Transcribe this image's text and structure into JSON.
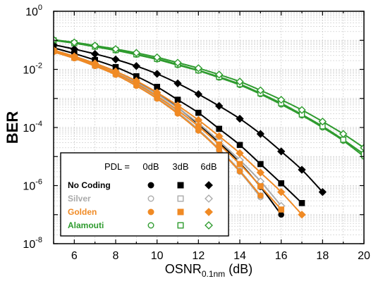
{
  "chart_data": {
    "type": "line",
    "title": "",
    "xlabel": "OSNR",
    "xlabel_sub": "0.1nm",
    "xlabel_unit": "(dB)",
    "ylabel": "BER",
    "xlim": [
      5,
      20
    ],
    "ylim": [
      1e-08,
      1
    ],
    "yscale": "log",
    "grid": true,
    "x_ticks": [
      6,
      8,
      10,
      12,
      14,
      16,
      18,
      20
    ],
    "y_ticks": [
      {
        "exp": 0,
        "label": "10",
        "sup": "0"
      },
      {
        "exp": -2,
        "label": "10",
        "sup": "-2"
      },
      {
        "exp": -4,
        "label": "10",
        "sup": "-4"
      },
      {
        "exp": -6,
        "label": "10",
        "sup": "-6"
      },
      {
        "exp": -8,
        "label": "10",
        "sup": "-8"
      }
    ],
    "legend": {
      "placement": "bottom-left",
      "pdl_label": "PDL =",
      "pdl_columns": [
        "0dB",
        "3dB",
        "6dB"
      ],
      "rows": [
        {
          "label": "No Coding",
          "color": "#000000"
        },
        {
          "label": "Silver",
          "color": "#aaaaaa"
        },
        {
          "label": "Golden",
          "color": "#f08a24"
        },
        {
          "label": "Alamouti",
          "color": "#2e9b2e"
        }
      ]
    },
    "series": [
      {
        "name": "No Coding",
        "pdl": "0dB",
        "color": "#000000",
        "marker": "circle",
        "fill": true,
        "x": [
          5,
          6,
          7,
          8,
          9,
          10,
          11,
          12,
          13,
          14,
          15,
          16
        ],
        "y": [
          0.045,
          0.028,
          0.016,
          0.0085,
          0.0038,
          0.0015,
          0.00048,
          0.00013,
          3e-05,
          6e-06,
          9e-07,
          1e-07
        ]
      },
      {
        "name": "No Coding",
        "pdl": "3dB",
        "color": "#000000",
        "marker": "square",
        "fill": true,
        "x": [
          5,
          6,
          7,
          8,
          9,
          10,
          11,
          12,
          13,
          14,
          15,
          16,
          17
        ],
        "y": [
          0.055,
          0.035,
          0.021,
          0.012,
          0.0058,
          0.0025,
          0.0009,
          0.00032,
          9e-05,
          2.5e-05,
          5.5e-06,
          1.2e-06,
          2.5e-07
        ]
      },
      {
        "name": "No Coding",
        "pdl": "6dB",
        "color": "#000000",
        "marker": "diamond",
        "fill": true,
        "x": [
          5,
          6,
          7,
          8,
          9,
          10,
          11,
          12,
          13,
          14,
          15,
          16,
          17,
          18
        ],
        "y": [
          0.07,
          0.05,
          0.034,
          0.022,
          0.013,
          0.007,
          0.0033,
          0.0014,
          0.00055,
          0.0002,
          6e-05,
          1.5e-05,
          3.5e-06,
          6e-07
        ]
      },
      {
        "name": "Silver",
        "pdl": "0dB",
        "color": "#aaaaaa",
        "marker": "circle",
        "fill": false,
        "x": [
          5,
          6,
          7,
          8,
          9,
          10,
          11,
          12,
          13,
          14,
          15
        ],
        "y": [
          0.04,
          0.024,
          0.013,
          0.0066,
          0.0028,
          0.001,
          0.00031,
          8e-05,
          1.7e-05,
          3e-06,
          4e-07
        ]
      },
      {
        "name": "Silver",
        "pdl": "3dB",
        "color": "#aaaaaa",
        "marker": "square",
        "fill": false,
        "x": [
          5,
          6,
          7,
          8,
          9,
          10,
          11,
          12,
          13,
          14,
          15
        ],
        "y": [
          0.042,
          0.025,
          0.0135,
          0.0069,
          0.0029,
          0.00105,
          0.00033,
          8.5e-05,
          1.8e-05,
          3.3e-06,
          4.5e-07
        ]
      },
      {
        "name": "Silver",
        "pdl": "6dB",
        "color": "#aaaaaa",
        "marker": "diamond",
        "fill": false,
        "x": [
          5,
          6,
          7,
          8,
          9,
          10,
          11,
          12,
          13,
          14,
          15,
          16
        ],
        "y": [
          0.045,
          0.027,
          0.015,
          0.0078,
          0.0035,
          0.0014,
          0.00047,
          0.00014,
          3.4e-05,
          7.5e-06,
          1.4e-06,
          2e-07
        ]
      },
      {
        "name": "Golden",
        "pdl": "0dB",
        "color": "#f08a24",
        "marker": "circle",
        "fill": true,
        "x": [
          5,
          6,
          7,
          8,
          9,
          10,
          11,
          12,
          13,
          14,
          15
        ],
        "y": [
          0.04,
          0.024,
          0.013,
          0.0065,
          0.0027,
          0.00098,
          0.0003,
          7.8e-05,
          1.7e-05,
          3.1e-06,
          4.5e-07
        ]
      },
      {
        "name": "Golden",
        "pdl": "3dB",
        "color": "#f08a24",
        "marker": "square",
        "fill": true,
        "x": [
          5,
          6,
          7,
          8,
          9,
          10,
          11,
          12,
          13,
          14,
          15,
          16
        ],
        "y": [
          0.043,
          0.026,
          0.0142,
          0.0073,
          0.0032,
          0.0012,
          0.00039,
          0.00011,
          2.6e-05,
          5.5e-06,
          9.5e-07,
          1.5e-07
        ]
      },
      {
        "name": "Golden",
        "pdl": "6dB",
        "color": "#f08a24",
        "marker": "diamond",
        "fill": true,
        "x": [
          5,
          6,
          7,
          8,
          9,
          10,
          11,
          12,
          13,
          14,
          15,
          16,
          17
        ],
        "y": [
          0.046,
          0.028,
          0.016,
          0.0085,
          0.004,
          0.0016,
          0.00057,
          0.00018,
          5e-05,
          1.3e-05,
          2.8e-06,
          6e-07,
          1e-07
        ]
      },
      {
        "name": "Alamouti",
        "pdl": "0dB",
        "color": "#2e9b2e",
        "marker": "circle",
        "fill": false,
        "x": [
          5,
          6,
          7,
          8,
          9,
          10,
          11,
          12,
          13,
          14,
          15,
          16,
          17,
          18,
          19,
          20
        ],
        "y": [
          0.1,
          0.08,
          0.06,
          0.045,
          0.032,
          0.022,
          0.014,
          0.009,
          0.0052,
          0.0029,
          0.0014,
          0.00062,
          0.00026,
          0.0001,
          3.5e-05,
          1e-05
        ]
      },
      {
        "name": "Alamouti",
        "pdl": "3dB",
        "color": "#2e9b2e",
        "marker": "square",
        "fill": false,
        "x": [
          5,
          6,
          7,
          8,
          9,
          10,
          11,
          12,
          13,
          14,
          15,
          16,
          17,
          18,
          19,
          20
        ],
        "y": [
          0.1,
          0.08,
          0.061,
          0.046,
          0.033,
          0.023,
          0.0148,
          0.0093,
          0.0055,
          0.0031,
          0.0015,
          0.00068,
          0.00028,
          0.00011,
          3.8e-05,
          1.2e-05
        ]
      },
      {
        "name": "Alamouti",
        "pdl": "6dB",
        "color": "#2e9b2e",
        "marker": "diamond",
        "fill": false,
        "x": [
          5,
          6,
          7,
          8,
          9,
          10,
          11,
          12,
          13,
          14,
          15,
          16,
          17,
          18,
          19,
          20
        ],
        "y": [
          0.105,
          0.085,
          0.066,
          0.05,
          0.037,
          0.026,
          0.017,
          0.011,
          0.0066,
          0.0038,
          0.0019,
          0.0009,
          0.0004,
          0.00016,
          6e-05,
          2e-05
        ]
      }
    ]
  }
}
